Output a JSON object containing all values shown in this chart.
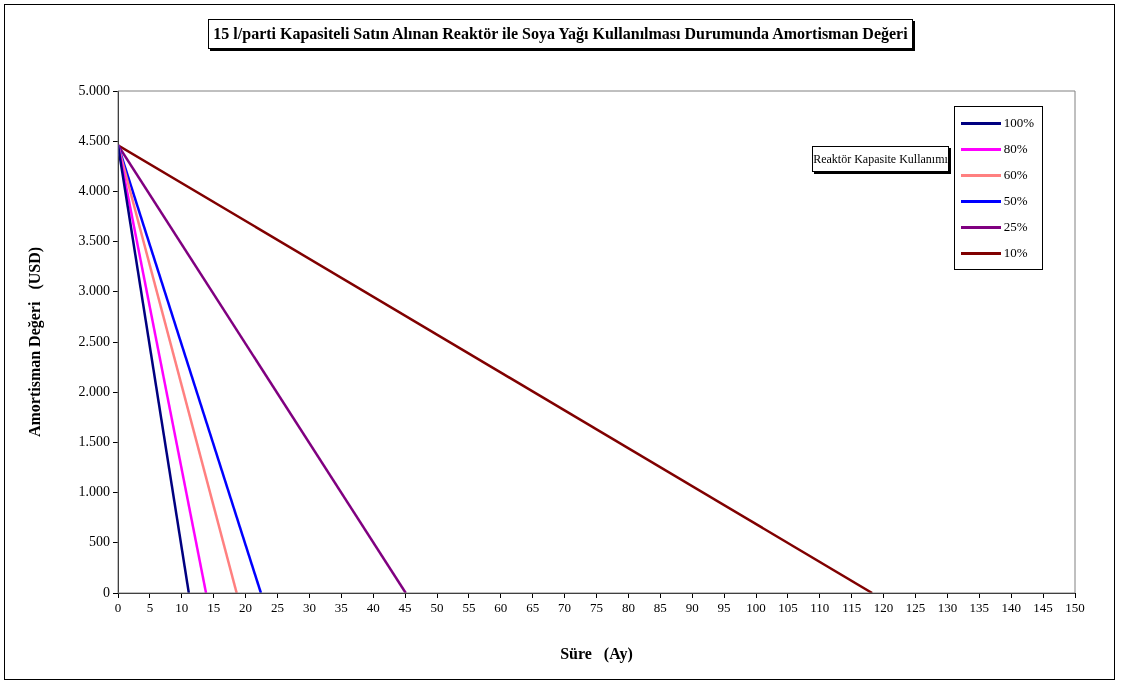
{
  "chart_data": {
    "type": "line",
    "title": "15 l/parti Kapasiteli Satın Alınan Reaktör ile Soya Yağı Kullanılması Durumunda Amortisman Değeri",
    "xlabel": "Süre   (Ay)",
    "ylabel": "Amortisman Değeri   (USD)",
    "legend_title": "Reaktör Kapasite Kullanımı",
    "legend": "top right",
    "grid": false,
    "marker": "none",
    "line_style": "solid",
    "xlim": [
      0,
      150
    ],
    "xticks": [
      0,
      5,
      10,
      15,
      20,
      25,
      30,
      35,
      40,
      45,
      50,
      55,
      60,
      65,
      70,
      75,
      80,
      85,
      90,
      95,
      100,
      105,
      110,
      115,
      120,
      125,
      130,
      135,
      140,
      145,
      150
    ],
    "ylim": [
      0,
      5000
    ],
    "yticks": [
      {
        "value": 0,
        "label": "0"
      },
      {
        "value": 500,
        "label": "500"
      },
      {
        "value": 1000,
        "label": "1.000"
      },
      {
        "value": 1500,
        "label": "1.500"
      },
      {
        "value": 2000,
        "label": "2.000"
      },
      {
        "value": 2500,
        "label": "2.500"
      },
      {
        "value": 3000,
        "label": "3.000"
      },
      {
        "value": 3500,
        "label": "3.500"
      },
      {
        "value": 4000,
        "label": "4.000"
      },
      {
        "value": 4500,
        "label": "4.500"
      },
      {
        "value": 5000,
        "label": "5.000"
      }
    ],
    "series": [
      {
        "name": "100%",
        "color": "#000080",
        "x": [
          0,
          11.1
        ],
        "values": [
          4460,
          0
        ]
      },
      {
        "name": "80%",
        "color": "#ff00ff",
        "x": [
          0,
          13.8
        ],
        "values": [
          4460,
          0
        ]
      },
      {
        "name": "60%",
        "color": "#ff8080",
        "x": [
          0,
          18.6
        ],
        "values": [
          4460,
          0
        ]
      },
      {
        "name": "50%",
        "color": "#0000ff",
        "x": [
          0,
          22.4
        ],
        "values": [
          4460,
          0
        ]
      },
      {
        "name": "25%",
        "color": "#800080",
        "x": [
          0,
          45.1
        ],
        "values": [
          4460,
          0
        ]
      },
      {
        "name": "10%",
        "color": "#800000",
        "x": [
          0,
          118.2
        ],
        "values": [
          4460,
          0
        ]
      }
    ]
  }
}
